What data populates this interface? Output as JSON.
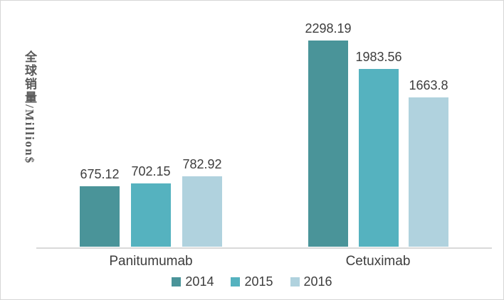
{
  "chart_data": {
    "type": "bar",
    "title": "",
    "ylabel": "全球销量/Million$",
    "xlabel": "",
    "categories": [
      "Panitumumab",
      "Cetuximab"
    ],
    "series": [
      {
        "name": "2014",
        "color": "#4a9499",
        "values": [
          675.12,
          2298.19
        ]
      },
      {
        "name": "2015",
        "color": "#55b2bf",
        "values": [
          702.15,
          1983.56
        ]
      },
      {
        "name": "2016",
        "color": "#b0d2de",
        "values": [
          782.92,
          1663.8
        ]
      }
    ],
    "ylim": [
      0,
      2400
    ],
    "grid": false,
    "legend_position": "bottom",
    "axis_line_color": "#d9d9d9"
  }
}
